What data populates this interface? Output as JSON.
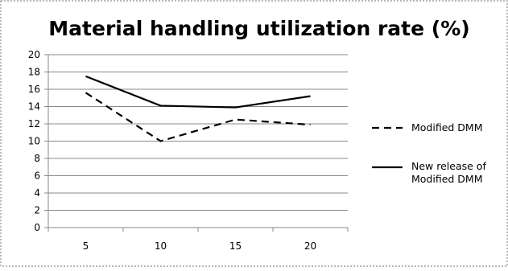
{
  "chart_data": {
    "type": "line",
    "title": "Material handling utilization rate (%)",
    "xlabel": "",
    "ylabel": "",
    "categories": [
      "5",
      "10",
      "15",
      "20"
    ],
    "ylim": [
      0,
      20
    ],
    "yticks": [
      "0",
      "2",
      "4",
      "6",
      "8",
      "10",
      "12",
      "14",
      "16",
      "18",
      "20"
    ],
    "grid": true,
    "legend_position": "right",
    "series": [
      {
        "name": "Modified DMM",
        "values": [
          15.6,
          10.0,
          12.5,
          11.9
        ],
        "color": "#000000",
        "style": "dashed"
      },
      {
        "name_lines": [
          "New release of",
          "Modified DMM"
        ],
        "values": [
          17.5,
          14.1,
          13.9,
          15.2
        ],
        "color": "#000000",
        "style": "solid"
      }
    ]
  }
}
